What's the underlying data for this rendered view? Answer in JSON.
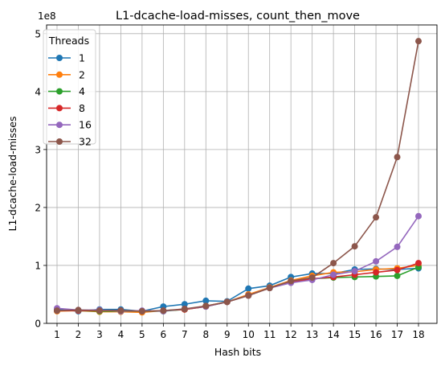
{
  "chart_data": {
    "type": "line",
    "title": "L1-dcache-load-misses, count_then_move",
    "xlabel": "Hash bits",
    "ylabel": "L1-dcache-load-misses",
    "y_multiplier_label": "1e8",
    "x": [
      1,
      2,
      3,
      4,
      5,
      6,
      7,
      8,
      9,
      10,
      11,
      12,
      13,
      14,
      15,
      16,
      17,
      18
    ],
    "ylim": [
      0,
      5.15
    ],
    "yticks": [
      0,
      1,
      2,
      3,
      4,
      5
    ],
    "grid": true,
    "legend": {
      "title": "Threads",
      "placement": "top-left"
    },
    "series": [
      {
        "name": "1",
        "color": "#1f77b4",
        "values": [
          0.24,
          0.21,
          0.24,
          0.24,
          0.21,
          0.29,
          0.33,
          0.39,
          0.38,
          0.6,
          0.65,
          0.8,
          0.86,
          0.86,
          0.93,
          0.94,
          0.93,
          0.95
        ]
      },
      {
        "name": "2",
        "color": "#ff7f0e",
        "values": [
          0.21,
          0.22,
          0.2,
          0.2,
          0.19,
          0.22,
          0.24,
          0.3,
          0.37,
          0.5,
          0.62,
          0.74,
          0.82,
          0.88,
          0.89,
          0.93,
          0.95,
          1.0
        ]
      },
      {
        "name": "4",
        "color": "#2ca02c",
        "values": [
          0.22,
          0.22,
          0.21,
          0.21,
          0.21,
          0.21,
          0.24,
          0.29,
          0.37,
          0.48,
          0.61,
          0.71,
          0.77,
          0.79,
          0.8,
          0.81,
          0.82,
          0.97
        ]
      },
      {
        "name": "8",
        "color": "#d62728",
        "values": [
          0.22,
          0.22,
          0.22,
          0.22,
          0.21,
          0.22,
          0.24,
          0.29,
          0.37,
          0.48,
          0.61,
          0.71,
          0.77,
          0.8,
          0.84,
          0.88,
          0.92,
          1.04
        ]
      },
      {
        "name": "16",
        "color": "#9467bd",
        "values": [
          0.26,
          0.23,
          0.23,
          0.21,
          0.22,
          0.21,
          0.25,
          0.29,
          0.37,
          0.48,
          0.61,
          0.7,
          0.75,
          0.84,
          0.9,
          1.07,
          1.32,
          1.85
        ]
      },
      {
        "name": "32",
        "color": "#8c564b",
        "values": [
          0.22,
          0.23,
          0.22,
          0.22,
          0.21,
          0.22,
          0.25,
          0.3,
          0.37,
          0.48,
          0.61,
          0.73,
          0.79,
          1.04,
          1.33,
          1.83,
          2.87,
          4.87
        ]
      }
    ]
  }
}
